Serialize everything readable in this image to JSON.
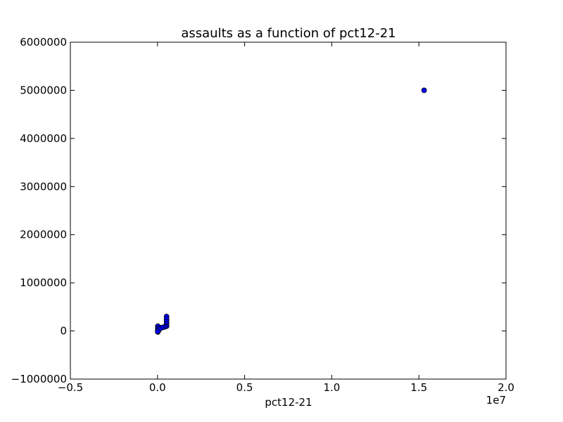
{
  "chart_data": {
    "type": "scatter",
    "title": "assaults as a function of pct12-21",
    "xlabel": "pct12-21",
    "ylabel": "",
    "x_offset_label": "1e7",
    "xlim": [
      -5000000,
      20000000
    ],
    "ylim": [
      -1000000,
      6000000
    ],
    "x_ticks": [
      -5000000,
      0,
      5000000,
      10000000,
      15000000,
      20000000
    ],
    "x_tick_labels": [
      "−0.5",
      "0.0",
      "0.5",
      "1.0",
      "1.5",
      "2.0"
    ],
    "y_ticks": [
      -1000000,
      0,
      1000000,
      2000000,
      3000000,
      4000000,
      5000000,
      6000000
    ],
    "y_tick_labels": [
      "−1000000",
      "0",
      "1000000",
      "2000000",
      "3000000",
      "4000000",
      "5000000",
      "6000000"
    ],
    "grid": false,
    "marker_color": "#0000ff",
    "marker_edge_color": "#000000",
    "points": [
      {
        "x": 15300000,
        "y": 5000000
      },
      {
        "x": 520000,
        "y": 300000
      },
      {
        "x": 520000,
        "y": 250000
      },
      {
        "x": 520000,
        "y": 200000
      },
      {
        "x": 520000,
        "y": 150000
      },
      {
        "x": 520000,
        "y": 100000
      },
      {
        "x": 450000,
        "y": 90000
      },
      {
        "x": 350000,
        "y": 80000
      },
      {
        "x": 250000,
        "y": 70000
      },
      {
        "x": 20000,
        "y": 100000
      },
      {
        "x": 20000,
        "y": 60000
      },
      {
        "x": 20000,
        "y": 30000
      },
      {
        "x": 20000,
        "y": 0
      },
      {
        "x": 20000,
        "y": -20000
      },
      {
        "x": 80000,
        "y": 20000
      },
      {
        "x": 120000,
        "y": 40000
      },
      {
        "x": 10000,
        "y": -10000
      }
    ]
  }
}
